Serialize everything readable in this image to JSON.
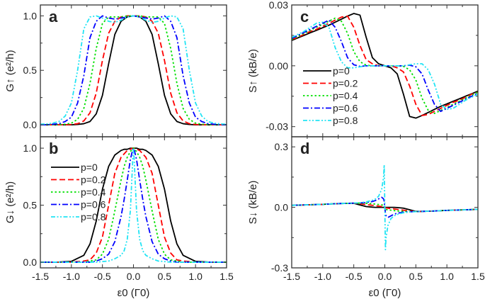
{
  "chart_data": [
    {
      "type": "line",
      "panel_label": "a",
      "ylabel": "G↑ (e²/h)",
      "xlabel": "",
      "xlim": [
        -1.5,
        1.5
      ],
      "ylim": [
        -0.11,
        1.1
      ],
      "yticks": [
        "0.0",
        "0.5",
        "1.0"
      ],
      "ytick_values": [
        0,
        0.5,
        1.0
      ],
      "xticks": [],
      "x": [
        -1.5,
        -1.4,
        -1.3,
        -1.2,
        -1.1,
        -1.0,
        -0.9,
        -0.8,
        -0.7,
        -0.6,
        -0.5,
        -0.4,
        -0.3,
        -0.2,
        -0.1,
        0,
        0.1,
        0.2,
        0.3,
        0.4,
        0.5,
        0.6,
        0.7,
        0.8,
        0.9,
        1.0,
        1.1,
        1.2,
        1.3,
        1.4,
        1.5
      ],
      "series": [
        {
          "values": [
            0,
            0,
            0,
            0,
            0,
            0,
            0.003,
            0.01,
            0.03,
            0.1,
            0.27,
            0.56,
            0.83,
            0.95,
            0.99,
            1.0,
            0.99,
            0.95,
            0.83,
            0.56,
            0.27,
            0.1,
            0.03,
            0.01,
            0.003,
            0,
            0,
            0,
            0,
            0,
            0
          ]
        },
        {
          "values": [
            0,
            0,
            0,
            0,
            0,
            0.003,
            0.01,
            0.035,
            0.11,
            0.29,
            0.59,
            0.84,
            0.95,
            0.99,
            1.0,
            1.0,
            1.0,
            0.99,
            0.95,
            0.84,
            0.59,
            0.29,
            0.11,
            0.035,
            0.01,
            0.003,
            0,
            0,
            0,
            0,
            0
          ]
        },
        {
          "values": [
            0,
            0,
            0,
            0.002,
            0.005,
            0.015,
            0.05,
            0.15,
            0.38,
            0.7,
            0.93,
            0.99,
            0.99,
            0.99,
            1.0,
            1.0,
            1.0,
            0.99,
            0.99,
            0.99,
            0.93,
            0.7,
            0.38,
            0.15,
            0.05,
            0.015,
            0.005,
            0.002,
            0,
            0,
            0
          ]
        },
        {
          "values": [
            0,
            0,
            0.005,
            0.01,
            0.03,
            0.07,
            0.2,
            0.45,
            0.8,
            0.95,
            1.0,
            0.98,
            0.97,
            0.98,
            0.99,
            1.0,
            0.99,
            0.98,
            0.97,
            0.98,
            1.0,
            0.95,
            0.8,
            0.45,
            0.2,
            0.07,
            0.03,
            0.01,
            0.005,
            0,
            0
          ]
        },
        {
          "values": [
            0.005,
            0.008,
            0.015,
            0.03,
            0.08,
            0.2,
            0.5,
            0.88,
            0.99,
            1.0,
            0.98,
            0.95,
            0.94,
            0.96,
            0.99,
            1.0,
            0.99,
            0.96,
            0.94,
            0.95,
            0.98,
            1.0,
            0.99,
            0.88,
            0.5,
            0.2,
            0.08,
            0.03,
            0.015,
            0.008,
            0.005
          ]
        }
      ]
    },
    {
      "type": "line",
      "panel_label": "b",
      "ylabel": "G↓ (e²/h)",
      "xlabel": "ε0 (Γ0)",
      "xlim": [
        -1.5,
        1.5
      ],
      "ylim": [
        -0.05,
        1.1
      ],
      "yticks": [
        "0.0",
        "0.5",
        "1.0"
      ],
      "ytick_values": [
        0,
        0.5,
        1.0
      ],
      "xticks": [
        "-1.5",
        "-1.0",
        "-0.5",
        "0.0",
        "0.5",
        "1.0",
        "1.5"
      ],
      "xtick_values": [
        -1.5,
        -1.0,
        -0.5,
        0,
        0.5,
        1.0,
        1.5
      ],
      "legend": [
        "p=0",
        "p=0.2",
        "p=0.4",
        "p=0.6",
        "p=0.8"
      ],
      "legend_position": "left",
      "x": [
        -1.5,
        -1.2,
        -1.0,
        -0.8,
        -0.7,
        -0.6,
        -0.5,
        -0.4,
        -0.3,
        -0.2,
        -0.15,
        -0.1,
        -0.05,
        -0.02,
        -0.01,
        0,
        0.01,
        0.02,
        0.05,
        0.1,
        0.15,
        0.2,
        0.3,
        0.4,
        0.5,
        0.6,
        0.7,
        0.8,
        1.0,
        1.2,
        1.5
      ],
      "series": [
        {
          "name": "p=0",
          "values": [
            0,
            0.001,
            0.007,
            0.06,
            0.16,
            0.36,
            0.64,
            0.84,
            0.94,
            0.98,
            0.99,
            0.99,
            1.0,
            1.0,
            1.0,
            1.0,
            1.0,
            1.0,
            1.0,
            0.99,
            0.99,
            0.98,
            0.94,
            0.84,
            0.64,
            0.36,
            0.16,
            0.06,
            0.007,
            0.001,
            0
          ]
        },
        {
          "name": "p=0.2",
          "values": [
            0,
            0,
            0,
            0.01,
            0.02,
            0.08,
            0.22,
            0.5,
            0.78,
            0.92,
            0.95,
            0.98,
            0.99,
            1.0,
            1.0,
            1.0,
            1.0,
            1.0,
            0.99,
            0.98,
            0.95,
            0.92,
            0.78,
            0.5,
            0.22,
            0.08,
            0.02,
            0.01,
            0,
            0,
            0
          ]
        },
        {
          "name": "p=0.4",
          "values": [
            0,
            0,
            0,
            0,
            0.01,
            0.02,
            0.07,
            0.2,
            0.45,
            0.72,
            0.84,
            0.92,
            0.97,
            0.99,
            1.0,
            1.0,
            1.0,
            0.99,
            0.97,
            0.92,
            0.84,
            0.72,
            0.45,
            0.2,
            0.07,
            0.02,
            0.01,
            0,
            0,
            0,
            0
          ]
        },
        {
          "name": "p=0.6",
          "values": [
            0,
            0,
            0,
            0,
            0,
            0.01,
            0.03,
            0.07,
            0.18,
            0.4,
            0.55,
            0.72,
            0.9,
            0.97,
            0.99,
            1.0,
            0.99,
            0.97,
            0.9,
            0.72,
            0.55,
            0.4,
            0.18,
            0.07,
            0.03,
            0.01,
            0,
            0,
            0,
            0,
            0
          ]
        },
        {
          "name": "p=0.8",
          "values": [
            0,
            0,
            0,
            0,
            0,
            0,
            0.005,
            0.01,
            0.03,
            0.06,
            0.1,
            0.2,
            0.45,
            0.8,
            0.92,
            1.0,
            0.92,
            0.8,
            0.45,
            0.2,
            0.1,
            0.06,
            0.03,
            0.01,
            0.005,
            0,
            0,
            0,
            0,
            0,
            0
          ]
        }
      ]
    },
    {
      "type": "line",
      "panel_label": "c",
      "ylabel": "S↑ (kB/e)",
      "xlabel": "",
      "xlim": [
        -1.5,
        1.5
      ],
      "ylim": [
        -0.035,
        0.03
      ],
      "yticks": [
        "-0.03",
        "0.00",
        "0.03"
      ],
      "ytick_values": [
        -0.03,
        0,
        0.03
      ],
      "xticks": [],
      "legend": [
        "p=0",
        "p=0.2",
        "p=0.4",
        "p=0.6",
        "p=0.8"
      ],
      "legend_position": "lower-left",
      "x": [
        -1.5,
        -1.4,
        -1.3,
        -1.2,
        -1.1,
        -1.0,
        -0.9,
        -0.8,
        -0.7,
        -0.6,
        -0.5,
        -0.4,
        -0.3,
        -0.2,
        -0.1,
        0,
        0.1,
        0.2,
        0.3,
        0.4,
        0.5,
        0.6,
        0.7,
        0.8,
        0.9,
        1.0,
        1.1,
        1.2,
        1.3,
        1.4,
        1.5
      ],
      "series": [
        {
          "name": "p=0",
          "values": [
            0.0125,
            0.0138,
            0.015,
            0.0163,
            0.0175,
            0.0188,
            0.02,
            0.0215,
            0.023,
            0.0245,
            0.0258,
            0.025,
            0.014,
            0.004,
            0.001,
            0,
            -0.001,
            -0.004,
            -0.014,
            -0.025,
            -0.0258,
            -0.0245,
            -0.023,
            -0.0215,
            -0.02,
            -0.0188,
            -0.0175,
            -0.0163,
            -0.015,
            -0.0138,
            -0.0125
          ]
        },
        {
          "name": "p=0.2",
          "values": [
            0.013,
            0.014,
            0.0155,
            0.017,
            0.018,
            0.0195,
            0.021,
            0.0225,
            0.024,
            0.0245,
            0.019,
            0.01,
            0.003,
            0.001,
            0,
            0,
            0,
            -0.001,
            -0.003,
            -0.01,
            -0.019,
            -0.0245,
            -0.024,
            -0.0225,
            -0.021,
            -0.0195,
            -0.018,
            -0.017,
            -0.0155,
            -0.014,
            -0.013
          ]
        },
        {
          "name": "p=0.4",
          "values": [
            0.013,
            0.0145,
            0.016,
            0.0175,
            0.019,
            0.0205,
            0.022,
            0.0235,
            0.022,
            0.016,
            0.007,
            0.002,
            0.0003,
            0,
            0,
            0,
            0,
            0,
            -0.0003,
            -0.002,
            -0.007,
            -0.016,
            -0.022,
            -0.0235,
            -0.022,
            -0.0205,
            -0.019,
            -0.0175,
            -0.016,
            -0.0145,
            -0.013
          ]
        },
        {
          "name": "p=0.6",
          "values": [
            0.0135,
            0.015,
            0.0165,
            0.018,
            0.0195,
            0.021,
            0.0225,
            0.019,
            0.012,
            0.004,
            0.0005,
            -0.0003,
            0,
            0,
            0,
            0,
            0,
            0,
            0,
            0.0003,
            -0.0005,
            -0.004,
            -0.012,
            -0.019,
            -0.0225,
            -0.021,
            -0.0195,
            -0.018,
            -0.0165,
            -0.015,
            -0.0135
          ]
        },
        {
          "name": "p=0.8",
          "values": [
            0.014,
            0.0155,
            0.017,
            0.019,
            0.021,
            0.0215,
            0.019,
            0.009,
            0.002,
            -0.001,
            -0.001,
            -0.0005,
            0,
            0,
            0,
            0,
            0,
            0,
            0,
            0.0005,
            0.001,
            0.001,
            -0.002,
            -0.009,
            -0.019,
            -0.0215,
            -0.021,
            -0.019,
            -0.017,
            -0.0155,
            -0.014
          ]
        }
      ]
    },
    {
      "type": "line",
      "panel_label": "d",
      "ylabel": "S↓ (kB/e)",
      "xlabel": "ε0 (Γ0)",
      "xlim": [
        -1.5,
        1.5
      ],
      "ylim": [
        -0.3,
        0.35
      ],
      "yticks": [
        "-0.3",
        "0.0",
        "0.3"
      ],
      "ytick_values": [
        -0.3,
        0,
        0.3
      ],
      "xticks": [
        "-1.5",
        "-1.0",
        "-0.5",
        "0.0",
        "0.5",
        "1.0",
        "1.5"
      ],
      "xtick_values": [
        -1.5,
        -1.0,
        -0.5,
        0,
        0.5,
        1.0,
        1.5
      ],
      "x": [
        -1.5,
        -1.2,
        -1.0,
        -0.8,
        -0.7,
        -0.6,
        -0.5,
        -0.4,
        -0.3,
        -0.2,
        -0.15,
        -0.1,
        -0.05,
        -0.02,
        -0.01,
        0,
        0.01,
        0.02,
        0.05,
        0.1,
        0.15,
        0.2,
        0.3,
        0.4,
        0.5,
        0.6,
        0.7,
        0.8,
        1.0,
        1.2,
        1.5
      ],
      "series": [
        {
          "values": [
            0.01,
            0.013,
            0.015,
            0.018,
            0.019,
            0.02,
            0.02,
            0.012,
            0.004,
            0.001,
            0,
            0,
            0,
            0,
            0,
            0,
            0,
            0,
            0,
            0,
            0,
            -0.001,
            -0.004,
            -0.012,
            -0.02,
            -0.02,
            -0.019,
            -0.018,
            -0.015,
            -0.013,
            -0.01
          ]
        },
        {
          "values": [
            0.01,
            0.013,
            0.015,
            0.018,
            0.019,
            0.02,
            0.021,
            0.018,
            0.014,
            0.01,
            0.008,
            0.006,
            0.004,
            0.003,
            0.002,
            0,
            -0.002,
            -0.003,
            -0.004,
            -0.006,
            -0.008,
            -0.01,
            -0.014,
            -0.018,
            -0.021,
            -0.02,
            -0.019,
            -0.018,
            -0.015,
            -0.013,
            -0.01
          ]
        },
        {
          "values": [
            0.01,
            0.013,
            0.015,
            0.018,
            0.019,
            0.02,
            0.021,
            0.021,
            0.02,
            0.018,
            0.016,
            0.014,
            0.012,
            0.011,
            0.01,
            0,
            -0.01,
            -0.011,
            -0.012,
            -0.014,
            -0.016,
            -0.018,
            -0.02,
            -0.021,
            -0.021,
            -0.02,
            -0.019,
            -0.018,
            -0.015,
            -0.013,
            -0.01
          ]
        },
        {
          "values": [
            0.01,
            0.013,
            0.015,
            0.018,
            0.019,
            0.02,
            0.021,
            0.022,
            0.024,
            0.029,
            0.034,
            0.042,
            0.05,
            0.042,
            0.03,
            0,
            -0.03,
            -0.042,
            -0.05,
            -0.042,
            -0.034,
            -0.029,
            -0.024,
            -0.022,
            -0.021,
            -0.02,
            -0.019,
            -0.018,
            -0.015,
            -0.013,
            -0.01
          ]
        },
        {
          "values": [
            0.01,
            0.013,
            0.015,
            0.018,
            0.019,
            0.02,
            0.021,
            0.023,
            0.027,
            0.035,
            0.042,
            0.055,
            0.09,
            0.15,
            0.21,
            0,
            -0.21,
            -0.15,
            -0.09,
            -0.055,
            -0.042,
            -0.035,
            -0.027,
            -0.023,
            -0.021,
            -0.02,
            -0.019,
            -0.018,
            -0.015,
            -0.013,
            -0.01
          ]
        }
      ]
    }
  ],
  "series_styles": [
    {
      "color": "#000000",
      "dash": "solid"
    },
    {
      "color": "#ff0000",
      "dash": "dashed"
    },
    {
      "color": "#00e000",
      "dash": "dotted"
    },
    {
      "color": "#0000ff",
      "dash": "dash-dot"
    },
    {
      "color": "#22e4f4",
      "dash": "dash-dot-dot"
    }
  ]
}
